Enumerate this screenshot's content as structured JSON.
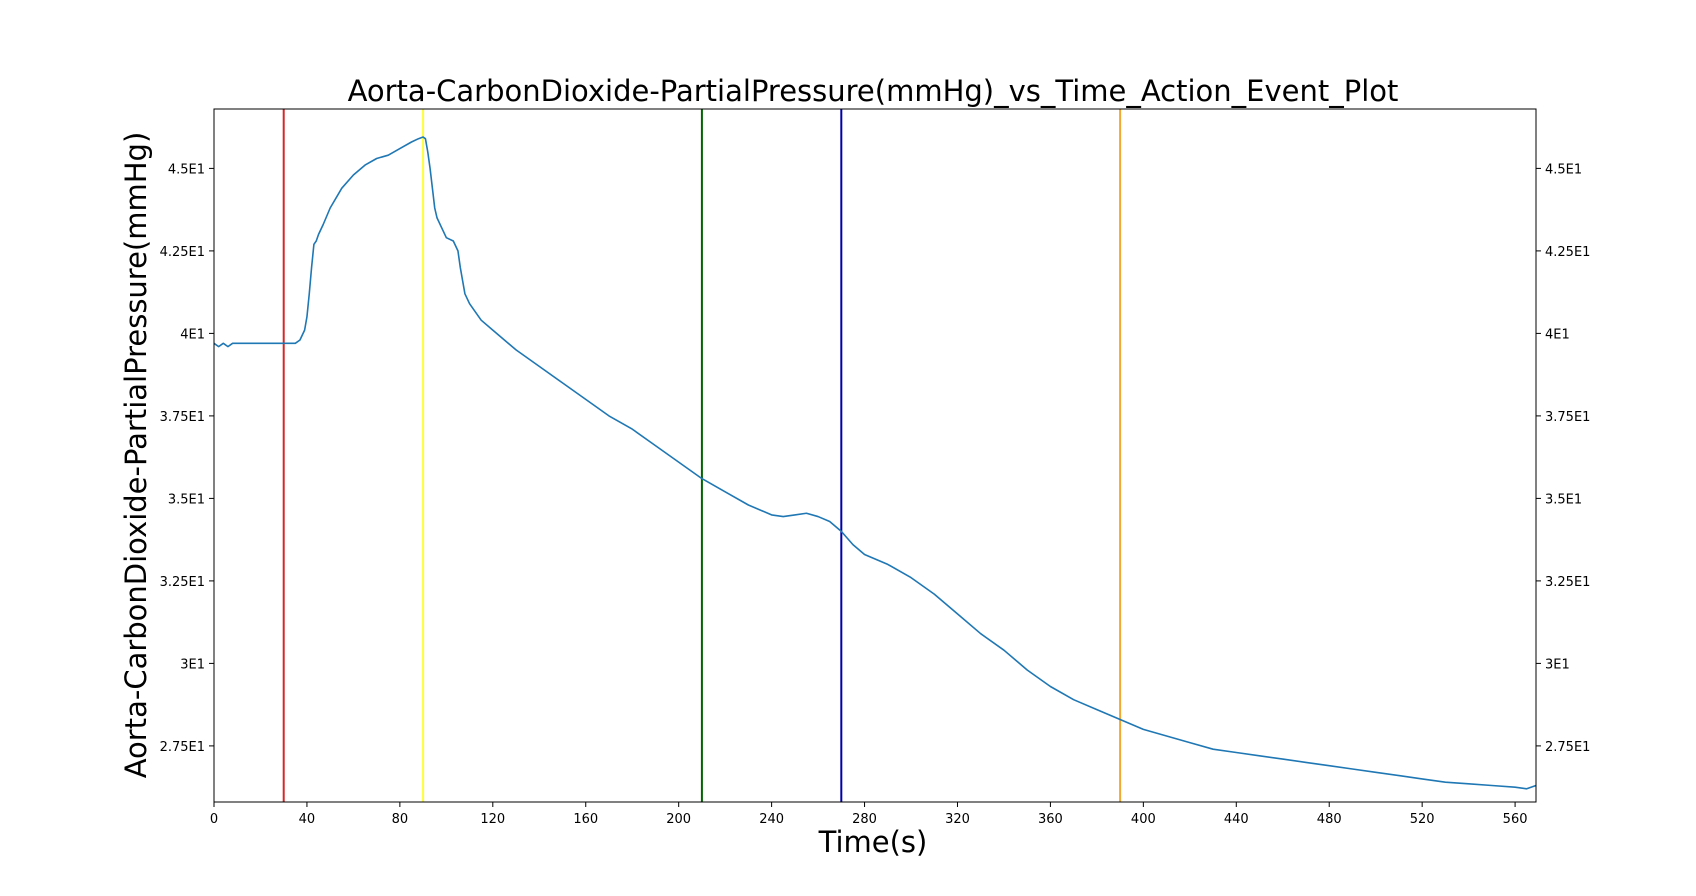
{
  "chart_data": {
    "type": "line",
    "title": "Aorta-CarbonDioxide-PartialPressure(mmHg)_vs_Time_Action_Event_Plot",
    "xlabel": "Time(s)",
    "ylabel": "Aorta-CarbonDioxide-PartialPressure(mmHg)",
    "xlim": [
      0,
      569
    ],
    "ylim": [
      25.8,
      46.8
    ],
    "x_ticks": [
      0,
      40,
      80,
      120,
      160,
      200,
      240,
      280,
      320,
      360,
      400,
      440,
      480,
      520,
      560
    ],
    "x_tick_labels": [
      "0",
      "40",
      "80",
      "120",
      "160",
      "200",
      "240",
      "280",
      "320",
      "360",
      "400",
      "440",
      "480",
      "520",
      "560"
    ],
    "y_ticks": [
      27.5,
      30,
      32.5,
      35,
      37.5,
      40,
      42.5,
      45
    ],
    "y_tick_labels": [
      "2.75E1",
      "3E1",
      "3.25E1",
      "3.5E1",
      "3.75E1",
      "4E1",
      "4.25E1",
      "4.5E1"
    ],
    "mirror_y_ticks_right": true,
    "grid": false,
    "legend": "none",
    "colors": {
      "series": "#1f77b4",
      "axes": "#000000"
    },
    "event_lines": [
      {
        "x": 30,
        "color": "#d62728"
      },
      {
        "x": 90,
        "color": "#ffff33"
      },
      {
        "x": 210,
        "color": "#006400"
      },
      {
        "x": 270,
        "color": "#0000aa"
      },
      {
        "x": 390,
        "color": "#f0a830"
      }
    ],
    "series": [
      {
        "color": "#1f77b4",
        "x": [
          0,
          2,
          4,
          6,
          8,
          10,
          15,
          20,
          25,
          30,
          35,
          37,
          39,
          40,
          41,
          42,
          43,
          44,
          45,
          47,
          50,
          55,
          60,
          65,
          70,
          75,
          80,
          85,
          88,
          90,
          91,
          92,
          93,
          94,
          95,
          96,
          98,
          100,
          103,
          105,
          106,
          107,
          108,
          110,
          112,
          115,
          120,
          130,
          140,
          150,
          160,
          170,
          180,
          190,
          200,
          210,
          220,
          230,
          240,
          245,
          250,
          255,
          260,
          265,
          270,
          275,
          280,
          290,
          300,
          310,
          320,
          330,
          340,
          350,
          360,
          370,
          380,
          390,
          400,
          410,
          420,
          430,
          440,
          450,
          460,
          470,
          480,
          490,
          500,
          510,
          520,
          530,
          540,
          550,
          560,
          565,
          569
        ],
        "y": [
          39.7,
          39.6,
          39.7,
          39.6,
          39.7,
          39.7,
          39.7,
          39.7,
          39.7,
          39.7,
          39.7,
          39.8,
          40.1,
          40.5,
          41.2,
          42.0,
          42.7,
          42.8,
          43.0,
          43.3,
          43.8,
          44.4,
          44.8,
          45.1,
          45.3,
          45.4,
          45.6,
          45.8,
          45.9,
          45.95,
          45.9,
          45.5,
          45.0,
          44.4,
          43.8,
          43.5,
          43.2,
          42.9,
          42.8,
          42.5,
          42.0,
          41.6,
          41.2,
          40.9,
          40.7,
          40.4,
          40.1,
          39.5,
          39.0,
          38.5,
          38.0,
          37.5,
          37.1,
          36.6,
          36.1,
          35.6,
          35.2,
          34.8,
          34.5,
          34.45,
          34.5,
          34.55,
          34.45,
          34.3,
          34.0,
          33.6,
          33.3,
          33.0,
          32.6,
          32.1,
          31.5,
          30.9,
          30.4,
          29.8,
          29.3,
          28.9,
          28.6,
          28.3,
          28.0,
          27.8,
          27.6,
          27.4,
          27.3,
          27.2,
          27.1,
          27.0,
          26.9,
          26.8,
          26.7,
          26.6,
          26.5,
          26.4,
          26.35,
          26.3,
          26.25,
          26.2,
          26.3
        ]
      }
    ]
  }
}
